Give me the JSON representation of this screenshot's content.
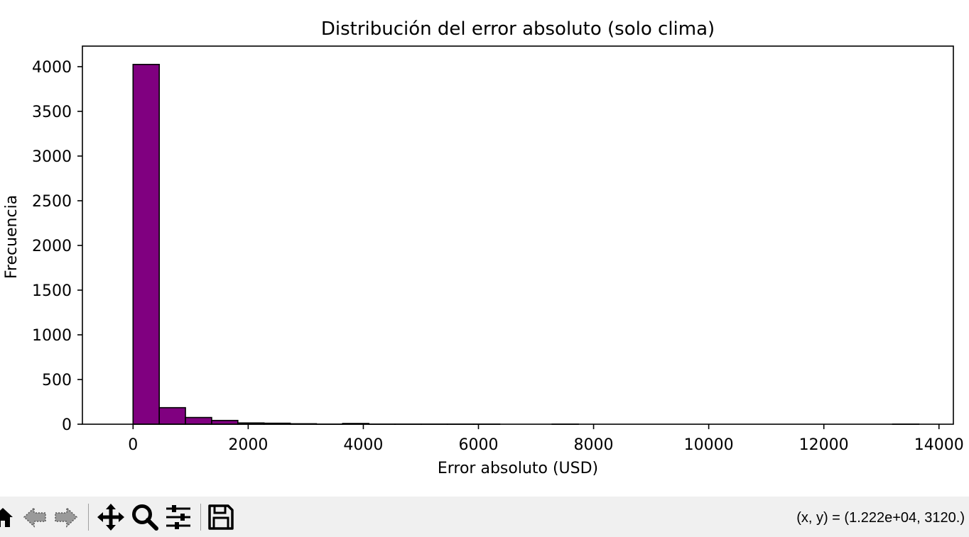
{
  "chart_data": {
    "type": "bar",
    "title": "Distribución del error absoluto (solo clima)",
    "xlabel": "Error absoluto (USD)",
    "ylabel": "Frecuencia",
    "xlim": [
      -880,
      14250
    ],
    "ylim": [
      0,
      4230
    ],
    "xticks": [
      0,
      2000,
      4000,
      6000,
      8000,
      10000,
      12000,
      14000
    ],
    "yticks": [
      0,
      500,
      1000,
      1500,
      2000,
      2500,
      3000,
      3500,
      4000
    ],
    "bin_width": 455,
    "bins": [
      {
        "x0": 0,
        "count": 4025
      },
      {
        "x0": 455,
        "count": 185
      },
      {
        "x0": 910,
        "count": 75
      },
      {
        "x0": 1365,
        "count": 42
      },
      {
        "x0": 1820,
        "count": 14
      },
      {
        "x0": 2275,
        "count": 11
      },
      {
        "x0": 2730,
        "count": 5
      },
      {
        "x0": 3185,
        "count": 1
      },
      {
        "x0": 3640,
        "count": 8
      },
      {
        "x0": 4095,
        "count": 1
      },
      {
        "x0": 4550,
        "count": 1
      },
      {
        "x0": 5005,
        "count": 1
      },
      {
        "x0": 5460,
        "count": 1
      },
      {
        "x0": 5915,
        "count": 1
      },
      {
        "x0": 6370,
        "count": 0
      },
      {
        "x0": 6825,
        "count": 0
      },
      {
        "x0": 7280,
        "count": 1
      },
      {
        "x0": 7735,
        "count": 0
      },
      {
        "x0": 8190,
        "count": 0
      },
      {
        "x0": 8645,
        "count": 0
      },
      {
        "x0": 9100,
        "count": 0
      },
      {
        "x0": 9555,
        "count": 0
      },
      {
        "x0": 10010,
        "count": 0
      },
      {
        "x0": 10465,
        "count": 0
      },
      {
        "x0": 10920,
        "count": 0
      },
      {
        "x0": 11375,
        "count": 0
      },
      {
        "x0": 11830,
        "count": 0
      },
      {
        "x0": 12285,
        "count": 0
      },
      {
        "x0": 12740,
        "count": 0
      },
      {
        "x0": 13195,
        "count": 1
      }
    ],
    "bar_color": "#800080",
    "edge_color": "#000000",
    "grid": false
  },
  "toolbar": {
    "buttons": [
      {
        "name": "home-button",
        "icon": "home-icon"
      },
      {
        "name": "back-button",
        "icon": "back-arrow-icon"
      },
      {
        "name": "forward-button",
        "icon": "forward-arrow-icon"
      },
      {
        "name": "pan-button",
        "icon": "move-icon"
      },
      {
        "name": "zoom-button",
        "icon": "magnifier-icon"
      },
      {
        "name": "configure-subplots-button",
        "icon": "sliders-icon"
      },
      {
        "name": "save-button",
        "icon": "floppy-disk-icon"
      }
    ],
    "coords_text": "(x, y) = (1.222e+04, 3120.)"
  }
}
